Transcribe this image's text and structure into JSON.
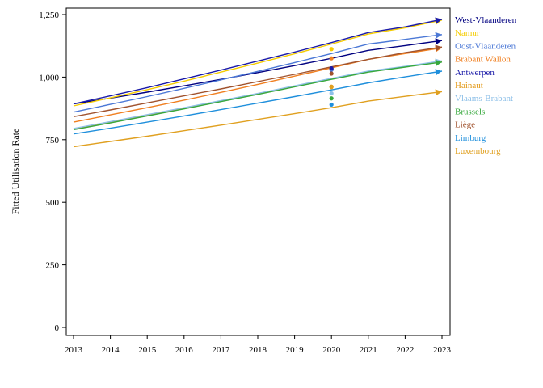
{
  "chart_data": {
    "type": "line",
    "title": "",
    "xlabel": "",
    "ylabel": "Fitted Utilisation Rate",
    "x": [
      2013,
      2014,
      2015,
      2016,
      2017,
      2018,
      2019,
      2020,
      2021,
      2022,
      2023
    ],
    "xlim": [
      2013,
      2023
    ],
    "ylim": [
      0,
      1250
    ],
    "yticks": [
      0,
      250,
      500,
      750,
      1000,
      1250
    ],
    "ytick_labels": [
      "0",
      "250",
      "500",
      "750",
      "1,000",
      "1,250"
    ],
    "xtick_labels": [
      "2013",
      "2014",
      "2015",
      "2016",
      "2017",
      "2018",
      "2019",
      "2020",
      "2021",
      "2022",
      "2023"
    ],
    "grid": false,
    "legend_position": "right",
    "series": [
      {
        "name": "West-Vlaanderen",
        "color": "#000080",
        "values": [
          893,
          916,
          940,
          965,
          991,
          1018,
          1046,
          1075,
          1107,
          1126,
          1146
        ],
        "observed_2020": 1030
      },
      {
        "name": "Namur",
        "color": "#f5cc00",
        "values": [
          885,
          917,
          950,
          984,
          1020,
          1056,
          1093,
          1132,
          1172,
          1197,
          1228
        ],
        "observed_2020": 1112
      },
      {
        "name": "Oost-Vlaanderen",
        "color": "#4b78d6",
        "values": [
          860,
          891,
          922,
          955,
          989,
          1023,
          1058,
          1094,
          1132,
          1151,
          1170
        ],
        "observed_2020": 1031
      },
      {
        "name": "Brabant Wallon",
        "color": "#f07f20",
        "values": [
          820,
          849,
          878,
          908,
          939,
          971,
          1004,
          1037,
          1071,
          1094,
          1117
        ],
        "observed_2020": 1075
      },
      {
        "name": "Antwerpen",
        "color": "#1a1aa8",
        "values": [
          893,
          925,
          958,
          993,
          1028,
          1064,
          1100,
          1138,
          1178,
          1201,
          1231
        ],
        "observed_2020": 1035
      },
      {
        "name": "Hainaut",
        "color": "#e39a1a",
        "values": [
          793,
          820,
          848,
          876,
          905,
          934,
          963,
          993,
          1022,
          1042,
          1062
        ],
        "observed_2020": 962
      },
      {
        "name": "Vlaams-Brabant",
        "color": "#8ec0e8",
        "values": [
          795,
          822,
          850,
          878,
          906,
          935,
          965,
          995,
          1024,
          1043,
          1065
        ],
        "observed_2020": 935
      },
      {
        "name": "Brussels",
        "color": "#36a83c",
        "values": [
          790,
          817,
          845,
          873,
          902,
          931,
          961,
          991,
          1020,
          1040,
          1060
        ],
        "observed_2020": 915
      },
      {
        "name": "Liège",
        "color": "#a0522d",
        "values": [
          842,
          869,
          897,
          925,
          953,
          982,
          1011,
          1041,
          1071,
          1098,
          1120
        ],
        "observed_2020": 1014
      },
      {
        "name": "Limburg",
        "color": "#1f8fdc",
        "values": [
          773,
          796,
          820,
          845,
          870,
          896,
          922,
          949,
          977,
          1001,
          1024
        ],
        "observed_2020": 890
      },
      {
        "name": "Luxembourg",
        "color": "#e0a020",
        "values": [
          722,
          743,
          764,
          786,
          808,
          831,
          854,
          878,
          904,
          923,
          942
        ],
        "observed_2020": 960
      }
    ]
  }
}
